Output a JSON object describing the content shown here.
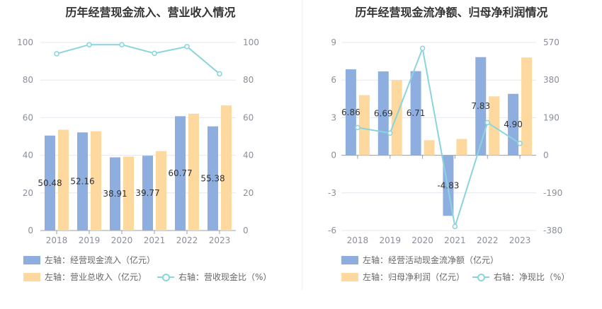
{
  "colors": {
    "blue": "#8eaee0",
    "orange": "#fdd9a0",
    "line": "#8ad4dc",
    "grid": "#e4e8ef"
  },
  "charts": [
    {
      "title": "历年经营现金流入、营业收入情况",
      "legend": {
        "bar1": "左轴：经营现金流入（亿元）",
        "bar2": "左轴：营业总收入（亿元）",
        "line": "右轴：营收现金比（%）"
      }
    },
    {
      "title": "历年经营现金流净额、归母净利润情况",
      "legend": {
        "bar1": "左轴：经营活动现金流净额（亿元）",
        "bar2": "左轴：归母净利润（亿元）",
        "line": "右轴：净现比（%）"
      }
    }
  ],
  "chart_data": [
    {
      "type": "bar",
      "title": "历年经营现金流入、营业收入情况",
      "categories": [
        "2018",
        "2019",
        "2020",
        "2021",
        "2022",
        "2023"
      ],
      "left_axis": {
        "ylim": [
          0,
          100
        ],
        "ticks": [
          "0",
          "20",
          "40",
          "60",
          "80",
          "100"
        ]
      },
      "right_axis": {
        "ylim": [
          0,
          100
        ],
        "ticks": [
          "0",
          "20",
          "40",
          "60",
          "80",
          "100"
        ]
      },
      "series": [
        {
          "name": "左轴：经营现金流入（亿元）",
          "axis": "left",
          "kind": "bar",
          "color": "#8eaee0",
          "values": [
            50.48,
            52.16,
            38.91,
            39.77,
            60.77,
            55.38
          ],
          "labels": [
            "50.48",
            "52.16",
            "38.91",
            "39.77",
            "60.77",
            "55.38"
          ]
        },
        {
          "name": "左轴：营业总收入（亿元）",
          "axis": "left",
          "kind": "bar",
          "color": "#fdd9a0",
          "values": [
            53.6,
            52.8,
            39.3,
            42.2,
            62.1,
            66.5
          ]
        },
        {
          "name": "右轴：营收现金比（%）",
          "axis": "right",
          "kind": "line",
          "color": "#8ad4dc",
          "values": [
            94,
            98.8,
            98.8,
            94.2,
            97.8,
            83.3
          ]
        }
      ],
      "grid": true,
      "legend_position": "bottom"
    },
    {
      "type": "bar",
      "title": "历年经营现金流净额、归母净利润情况",
      "categories": [
        "2018",
        "2019",
        "2020",
        "2021",
        "2022",
        "2023"
      ],
      "left_axis": {
        "ylim": [
          -6,
          9
        ],
        "ticks": [
          "-6",
          "-3",
          "0",
          "3",
          "6",
          "9"
        ]
      },
      "right_axis": {
        "ylim": [
          -380,
          570
        ],
        "ticks": [
          "-380",
          "-190",
          "0",
          "190",
          "380",
          "570"
        ]
      },
      "series": [
        {
          "name": "左轴：经营活动现金流净额（亿元）",
          "axis": "left",
          "kind": "bar",
          "color": "#8eaee0",
          "values": [
            6.86,
            6.69,
            6.71,
            -4.83,
            7.83,
            4.9
          ],
          "labels": [
            "6.86",
            "6.69",
            "6.71",
            "-4.83",
            "7.83",
            "4.90"
          ]
        },
        {
          "name": "左轴：归母净利润（亿元）",
          "axis": "left",
          "kind": "bar",
          "color": "#fdd9a0",
          "values": [
            4.8,
            6.0,
            1.2,
            1.3,
            4.7,
            7.8
          ]
        },
        {
          "name": "右轴：净现比（%）",
          "axis": "right",
          "kind": "line",
          "color": "#8ad4dc",
          "values": [
            140,
            112,
            540,
            -360,
            165,
            60
          ]
        }
      ],
      "grid": true,
      "legend_position": "bottom"
    }
  ]
}
